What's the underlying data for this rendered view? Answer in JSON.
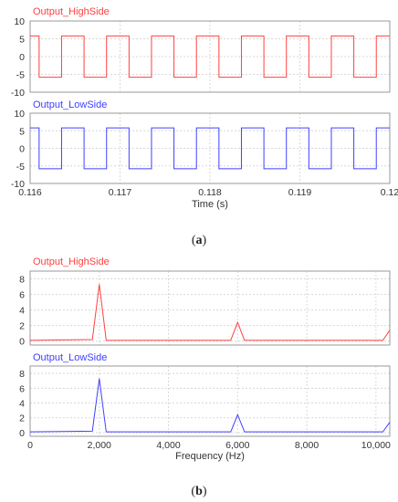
{
  "chart_data": [
    {
      "type": "line",
      "panel": "a",
      "x_unit_label": "Time (s)",
      "xlim": [
        0.116,
        0.12
      ],
      "x_ticks": [
        0.116,
        0.117,
        0.118,
        0.119,
        0.12
      ],
      "x_tick_labels": [
        "0.116",
        "0.117",
        "0.118",
        "0.119",
        "0.12"
      ],
      "grid": true,
      "subplots": [
        {
          "name": "Output_HighSide",
          "color": "#ff4040",
          "ylim": [
            -10,
            10
          ],
          "y_ticks": [
            10,
            5,
            0,
            -5,
            -10
          ],
          "y_tick_labels": [
            "10",
            "5",
            "0",
            "-5",
            "-10"
          ],
          "waveform": "square",
          "high": 5.8,
          "low": -5.8,
          "edges": [
            0.1161,
            0.11635,
            0.1166,
            0.11685,
            0.1171,
            0.11735,
            0.1176,
            0.11785,
            0.1181,
            0.11835,
            0.1186,
            0.11885,
            0.1191,
            0.11935,
            0.1196,
            0.11985
          ],
          "start_level": 5.8
        },
        {
          "name": "Output_LowSide",
          "color": "#4040ff",
          "ylim": [
            -10,
            10
          ],
          "y_ticks": [
            10,
            5,
            0,
            -5,
            -10
          ],
          "y_tick_labels": [
            "10",
            "5",
            "0",
            "-5",
            "-10"
          ],
          "waveform": "square",
          "high": 5.8,
          "low": -5.8,
          "edges": [
            0.1161,
            0.11635,
            0.1166,
            0.11685,
            0.1171,
            0.11735,
            0.1176,
            0.11785,
            0.1181,
            0.11835,
            0.1186,
            0.11885,
            0.1191,
            0.11935,
            0.1196,
            0.11985
          ],
          "start_level": 5.8
        }
      ]
    },
    {
      "type": "line",
      "panel": "b",
      "x_unit_label": "Frequency (Hz)",
      "xlim": [
        0,
        10400
      ],
      "x_ticks": [
        0,
        2000,
        4000,
        6000,
        8000,
        10000
      ],
      "x_tick_labels": [
        "0",
        "2,000",
        "4,000",
        "6,000",
        "8,000",
        "10,000"
      ],
      "grid": true,
      "subplots": [
        {
          "name": "Output_HighSide",
          "color": "#ff4040",
          "ylim": [
            -0.5,
            9
          ],
          "y_ticks": [
            8,
            6,
            4,
            2,
            0
          ],
          "y_tick_labels": [
            "8",
            "6",
            "4",
            "2",
            "0"
          ],
          "x": [
            0,
            1800,
            2000,
            2200,
            5800,
            6000,
            6200,
            10200,
            10400
          ],
          "y": [
            0.1,
            0.2,
            7.3,
            0.1,
            0.1,
            2.4,
            0.1,
            0.1,
            1.4
          ]
        },
        {
          "name": "Output_LowSide",
          "color": "#4040ff",
          "ylim": [
            -0.5,
            9
          ],
          "y_ticks": [
            8,
            6,
            4,
            2,
            0
          ],
          "y_tick_labels": [
            "8",
            "6",
            "4",
            "2",
            "0"
          ],
          "x": [
            0,
            1800,
            2000,
            2200,
            5800,
            6000,
            6200,
            10200,
            10400
          ],
          "y": [
            0.1,
            0.2,
            7.3,
            0.1,
            0.1,
            2.4,
            0.1,
            0.1,
            1.4
          ]
        }
      ]
    }
  ],
  "captions": {
    "a": "a",
    "b": "b"
  }
}
